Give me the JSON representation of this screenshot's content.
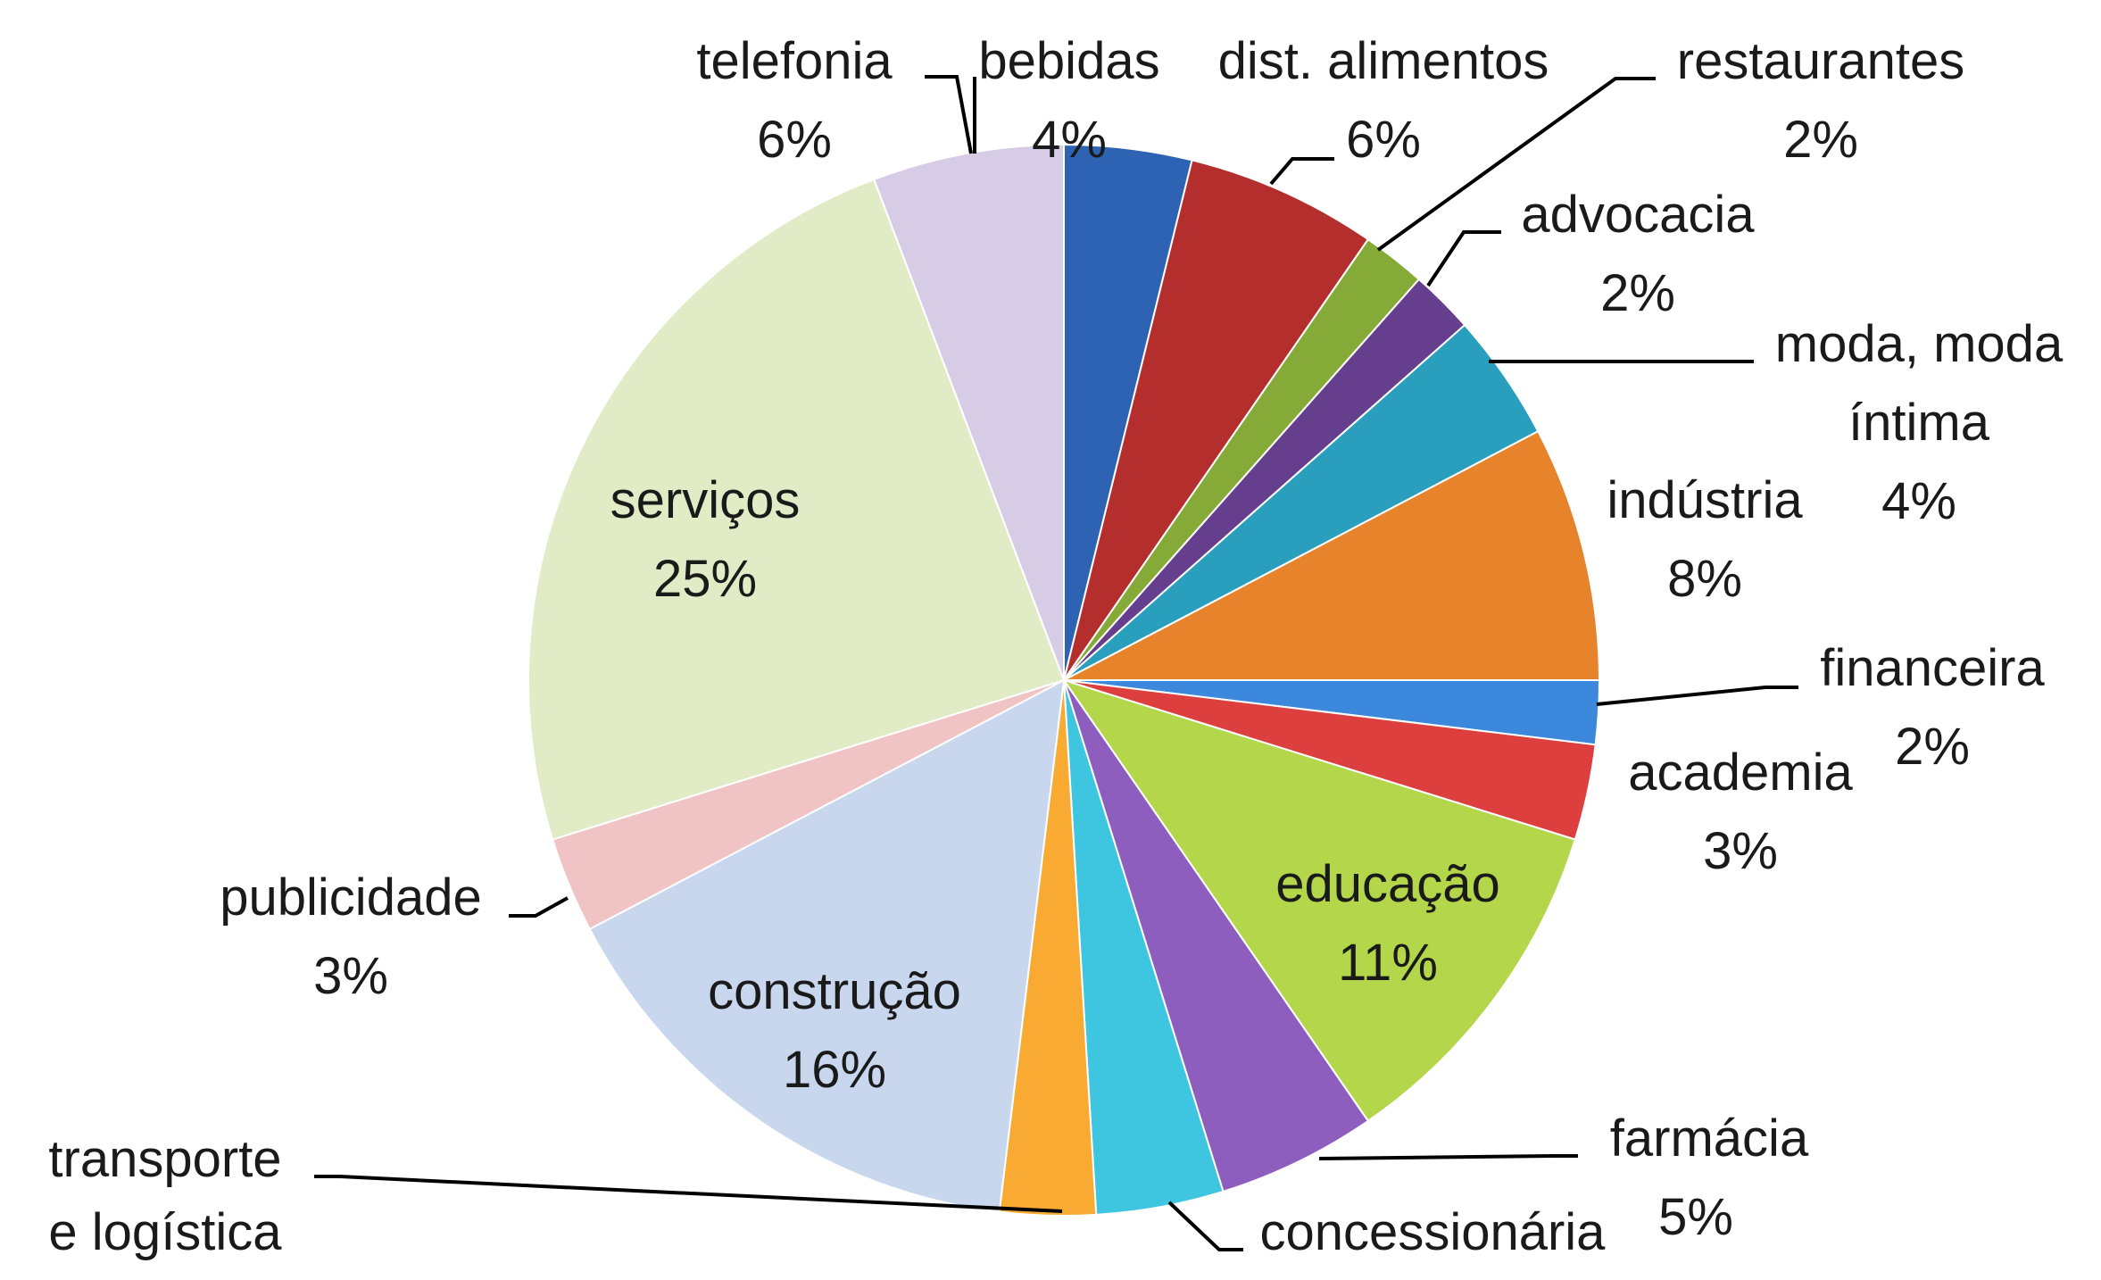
{
  "chart_data": {
    "type": "pie",
    "title": "",
    "start_angle_deg": 90,
    "direction": "clockwise",
    "slices": [
      {
        "name": "bebidas",
        "value": 4,
        "pct_label": "4%",
        "color": "#2E63B3"
      },
      {
        "name": "dist. alimentos",
        "value": 6,
        "pct_label": "6%",
        "color": "#B52E2E"
      },
      {
        "name": "restaurantes",
        "value": 2,
        "pct_label": "2%",
        "color": "#86AA38"
      },
      {
        "name": "advocacia",
        "value": 2,
        "pct_label": "2%",
        "color": "#653F8E"
      },
      {
        "name": "moda, moda íntima",
        "value": 4,
        "pct_label": "4%",
        "color": "#2A9EBD"
      },
      {
        "name": "indústria",
        "value": 8,
        "pct_label": "8%",
        "color": "#E6832B"
      },
      {
        "name": "financeira",
        "value": 2,
        "pct_label": "2%",
        "color": "#3B88DD"
      },
      {
        "name": "academia",
        "value": 3,
        "pct_label": "3%",
        "color": "#DC3F3D"
      },
      {
        "name": "educação",
        "value": 11,
        "pct_label": "11%",
        "color": "#B3D64A"
      },
      {
        "name": "farmácia",
        "value": 5,
        "pct_label": "5%",
        "color": "#8E5EBE"
      },
      {
        "name": "concessionária",
        "value": 4,
        "pct_label": "",
        "color": "#3EC6E0"
      },
      {
        "name": "transporte e logística",
        "value": 3,
        "pct_label": "",
        "color": "#F9AA33"
      },
      {
        "name": "construção",
        "value": 16,
        "pct_label": "16%",
        "color": "#C8D7EE"
      },
      {
        "name": "publicidade",
        "value": 3,
        "pct_label": "3%",
        "color": "#F0C4C4"
      },
      {
        "name": "serviços",
        "value": 25,
        "pct_label": "25%",
        "color": "#E1EBC6"
      },
      {
        "name": "telefonia",
        "value": 6,
        "pct_label": "6%",
        "color": "#D7CCE5"
      }
    ]
  }
}
